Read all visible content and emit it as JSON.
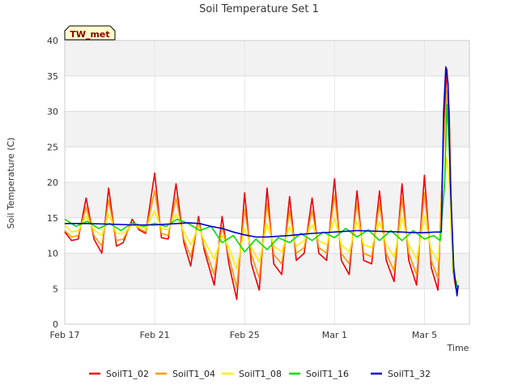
{
  "chart_data": {
    "type": "line",
    "title": "Soil Temperature Set 1",
    "xlabel": "Time",
    "ylabel": "Soil Temperature (C)",
    "station_label": "TW_met",
    "ylim": [
      0,
      40
    ],
    "yticks": [
      0,
      5,
      10,
      15,
      20,
      25,
      30,
      35,
      40
    ],
    "xlim_days": [
      0,
      18
    ],
    "xticks": [
      {
        "day": 0,
        "label": "Feb 17"
      },
      {
        "day": 4,
        "label": "Feb 21"
      },
      {
        "day": 8,
        "label": "Feb 25"
      },
      {
        "day": 12,
        "label": "Mar 1"
      },
      {
        "day": 16,
        "label": "Mar 5"
      }
    ],
    "grid": true,
    "legend_position": "bottom",
    "series": [
      {
        "name": "SoilT1_02",
        "color": "#ee0000",
        "x": [
          0.0,
          0.3,
          0.6,
          0.95,
          1.3,
          1.65,
          1.95,
          2.3,
          2.6,
          3.0,
          3.3,
          3.6,
          4.0,
          4.3,
          4.6,
          4.95,
          5.3,
          5.6,
          5.95,
          6.2,
          6.65,
          7.0,
          7.3,
          7.65,
          8.0,
          8.3,
          8.65,
          9.0,
          9.3,
          9.65,
          10.0,
          10.3,
          10.65,
          11.0,
          11.3,
          11.65,
          12.0,
          12.3,
          12.65,
          13.0,
          13.3,
          13.65,
          14.0,
          14.3,
          14.65,
          15.0,
          15.3,
          15.65,
          16.0,
          16.3,
          16.6,
          16.9,
          17.0,
          17.1,
          17.25,
          17.4,
          17.5
        ],
        "y": [
          13,
          11.8,
          12,
          17.8,
          12,
          10,
          19.2,
          11,
          11.5,
          14.8,
          13.3,
          12.8,
          21.3,
          12.2,
          12,
          19.8,
          11.5,
          8.2,
          15.2,
          10.5,
          5.5,
          15.2,
          8.5,
          3.5,
          18.5,
          8.5,
          4.8,
          19.2,
          8.5,
          7,
          18,
          9,
          10,
          17.8,
          10,
          9,
          20.5,
          9,
          7,
          18.8,
          9,
          8.5,
          18.8,
          9,
          6,
          19.8,
          9,
          5.5,
          21,
          8,
          4.8,
          30,
          36,
          30,
          8,
          5,
          5
        ]
      },
      {
        "name": "SoilT1_04",
        "color": "#ff9900",
        "x": [
          0.0,
          0.3,
          0.6,
          0.95,
          1.3,
          1.65,
          1.95,
          2.3,
          2.6,
          3.0,
          3.3,
          3.6,
          4.0,
          4.3,
          4.6,
          4.95,
          5.3,
          5.6,
          5.95,
          6.2,
          6.65,
          7.0,
          7.3,
          7.65,
          8.0,
          8.3,
          8.65,
          9.0,
          9.3,
          9.65,
          10.0,
          10.3,
          10.65,
          11.0,
          11.3,
          11.65,
          12.0,
          12.3,
          12.65,
          13.0,
          13.3,
          13.65,
          14.0,
          14.3,
          14.65,
          15.0,
          15.3,
          15.65,
          16.0,
          16.3,
          16.6,
          16.9,
          17.0,
          17.1,
          17.25,
          17.4,
          17.5
        ],
        "y": [
          13.2,
          12.3,
          12.5,
          16.5,
          12.5,
          11,
          17.5,
          11.8,
          12,
          14.3,
          13.5,
          13,
          18.8,
          12.8,
          12.5,
          17.8,
          12,
          9.5,
          14.5,
          11,
          7,
          13.8,
          9.5,
          5.2,
          16.2,
          9.8,
          6.5,
          17,
          9.8,
          8.5,
          16,
          10,
          10.8,
          16,
          10.8,
          10,
          18.2,
          10,
          8.5,
          17,
          10,
          9.5,
          17,
          10,
          7.5,
          17.8,
          10,
          7,
          18.5,
          9,
          6.5,
          28,
          33,
          28,
          8,
          6,
          6
        ]
      },
      {
        "name": "SoilT1_08",
        "color": "#ffee00",
        "x": [
          0.0,
          0.3,
          0.6,
          0.95,
          1.3,
          1.65,
          1.95,
          2.3,
          2.6,
          3.0,
          3.3,
          3.6,
          4.0,
          4.3,
          4.6,
          4.95,
          5.3,
          5.6,
          5.95,
          6.2,
          6.65,
          7.0,
          7.3,
          7.65,
          8.0,
          8.3,
          8.65,
          9.0,
          9.3,
          9.65,
          10.0,
          10.3,
          10.65,
          11.0,
          11.3,
          11.65,
          12.0,
          12.3,
          12.65,
          13.0,
          13.3,
          13.65,
          14.0,
          14.3,
          14.65,
          15.0,
          15.3,
          15.65,
          16.0,
          16.3,
          16.6,
          16.9,
          17.0,
          17.1,
          17.25,
          17.4,
          17.5
        ],
        "y": [
          14,
          13,
          13.2,
          15.2,
          13.3,
          12.5,
          15.5,
          12.8,
          12.8,
          14,
          13.8,
          13.5,
          16,
          13.5,
          13.3,
          15.5,
          13,
          11.2,
          13.8,
          11.8,
          9.2,
          12.5,
          10.8,
          7.8,
          13.5,
          10.8,
          8.8,
          14.2,
          11,
          10.2,
          13.8,
          11,
          11.8,
          14,
          11.8,
          11.2,
          15,
          11.2,
          10.2,
          14.5,
          11.2,
          10.8,
          14.5,
          11.2,
          9.5,
          15,
          11.2,
          9.2,
          15.2,
          10.5,
          8.8,
          20,
          23.5,
          20,
          8,
          6,
          6
        ]
      },
      {
        "name": "SoilT1_16",
        "color": "#00dd00",
        "x": [
          0.0,
          0.5,
          1.0,
          1.5,
          2.0,
          2.5,
          3.0,
          3.5,
          4.0,
          4.5,
          5.0,
          5.5,
          6.0,
          6.5,
          7.0,
          7.5,
          8.0,
          8.5,
          9.0,
          9.5,
          10.0,
          10.5,
          11.0,
          11.5,
          12.0,
          12.5,
          13.0,
          13.5,
          14.0,
          14.5,
          15.0,
          15.5,
          16.0,
          16.4,
          16.7,
          16.9,
          17.0,
          17.1,
          17.3,
          17.5
        ],
        "y": [
          14.8,
          13.8,
          14.5,
          13.5,
          14.2,
          13.2,
          14.3,
          13.8,
          14.2,
          13.8,
          14.8,
          14.2,
          13.2,
          13.8,
          11.5,
          12.5,
          10.2,
          12,
          10.5,
          12.2,
          11.5,
          12.8,
          11.8,
          13,
          12.2,
          13.5,
          12.3,
          13.3,
          11.8,
          13.2,
          11.8,
          13.2,
          12,
          12.5,
          11.8,
          20,
          31,
          25,
          7,
          5
        ]
      },
      {
        "name": "SoilT1_32",
        "color": "#0000cc",
        "x": [
          0.0,
          1.0,
          2.0,
          3.0,
          4.0,
          5.0,
          5.5,
          6.0,
          6.5,
          7.0,
          7.5,
          8.0,
          8.5,
          9.0,
          10.0,
          11.0,
          12.0,
          13.0,
          14.0,
          15.0,
          15.5,
          16.0,
          16.5,
          16.75,
          16.85,
          16.95,
          17.05,
          17.15,
          17.3,
          17.45,
          17.5
        ],
        "y": [
          14.2,
          14.2,
          14.1,
          14,
          14,
          14.2,
          14.3,
          14.2,
          13.8,
          13.5,
          13,
          12.6,
          12.3,
          12.3,
          12.5,
          12.8,
          13,
          13.2,
          13.1,
          13,
          12.9,
          12.9,
          13,
          13,
          30,
          36.3,
          34,
          20,
          8,
          4,
          5.5
        ]
      }
    ]
  }
}
